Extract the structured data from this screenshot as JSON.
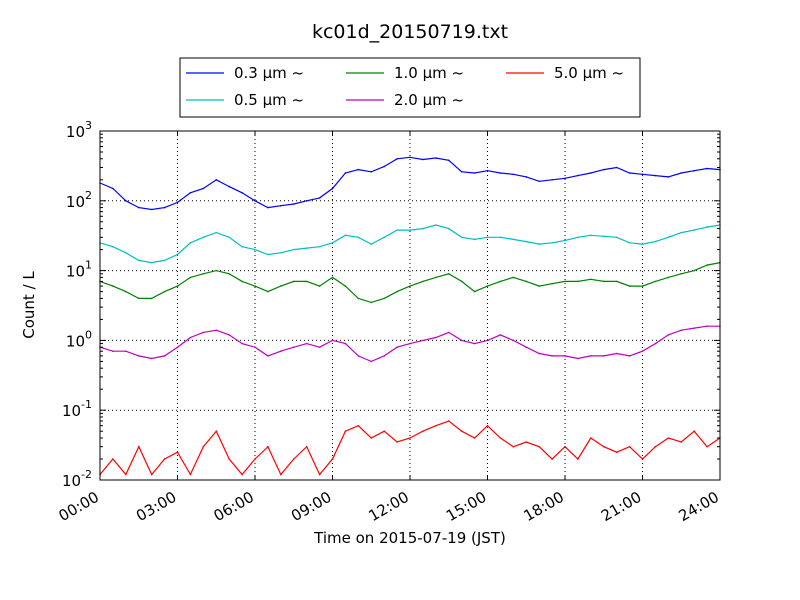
{
  "chart_data": {
    "type": "line",
    "title": "kc01d_20150719.txt",
    "xlabel": "Time on 2015-07-19 (JST)",
    "ylabel": "Count / L",
    "xlim": [
      "00:00",
      "24:00"
    ],
    "ylim": [
      0.01,
      1000
    ],
    "yscale": "log",
    "grid": true,
    "legend_position": "top-center",
    "x_ticks": [
      "00:00",
      "03:00",
      "06:00",
      "09:00",
      "12:00",
      "15:00",
      "18:00",
      "21:00",
      "24:00"
    ],
    "y_ticks": [
      {
        "base": "10",
        "exp": "-2"
      },
      {
        "base": "10",
        "exp": "-1"
      },
      {
        "base": "10",
        "exp": "0"
      },
      {
        "base": "10",
        "exp": "1"
      },
      {
        "base": "10",
        "exp": "2"
      },
      {
        "base": "10",
        "exp": "3"
      }
    ],
    "x_hours": [
      0,
      0.5,
      1,
      1.5,
      2,
      2.5,
      3,
      3.5,
      4,
      4.5,
      5,
      5.5,
      6,
      6.5,
      7,
      7.5,
      8,
      8.5,
      9,
      9.5,
      10,
      10.5,
      11,
      11.5,
      12,
      12.5,
      13,
      13.5,
      14,
      14.5,
      15,
      15.5,
      16,
      16.5,
      17,
      17.5,
      18,
      18.5,
      19,
      19.5,
      20,
      20.5,
      21,
      21.5,
      22,
      22.5,
      23,
      23.5,
      24
    ],
    "series": [
      {
        "name": "0.3 µm ~",
        "color": "#0000ff",
        "values": [
          180,
          150,
          100,
          80,
          75,
          80,
          95,
          130,
          150,
          200,
          160,
          130,
          100,
          80,
          85,
          90,
          100,
          110,
          150,
          250,
          280,
          260,
          310,
          400,
          420,
          390,
          410,
          380,
          260,
          250,
          270,
          250,
          240,
          220,
          190,
          200,
          210,
          230,
          250,
          280,
          300,
          250,
          240,
          230,
          220,
          250,
          270,
          290,
          280
        ]
      },
      {
        "name": "0.5 µm ~",
        "color": "#00bfbf",
        "values": [
          25,
          22,
          18,
          14,
          13,
          14,
          17,
          25,
          30,
          35,
          30,
          22,
          20,
          17,
          18,
          20,
          21,
          22,
          25,
          32,
          30,
          24,
          30,
          38,
          38,
          40,
          45,
          40,
          30,
          28,
          30,
          30,
          28,
          26,
          24,
          25,
          27,
          30,
          32,
          31,
          30,
          25,
          24,
          26,
          30,
          35,
          38,
          42,
          45
        ]
      },
      {
        "name": "1.0 µm ~",
        "color": "#008000",
        "values": [
          7,
          6,
          5,
          4,
          4,
          5,
          6,
          8,
          9,
          10,
          9,
          7,
          6,
          5,
          6,
          7,
          7,
          6,
          8,
          6,
          4,
          3.5,
          4,
          5,
          6,
          7,
          8,
          9,
          7,
          5,
          6,
          7,
          8,
          7,
          6,
          6.5,
          7,
          7,
          7.5,
          7,
          7,
          6,
          6,
          7,
          8,
          9,
          10,
          12,
          13
        ]
      },
      {
        "name": "2.0 µm ~",
        "color": "#bf00bf",
        "values": [
          0.8,
          0.7,
          0.7,
          0.6,
          0.55,
          0.6,
          0.8,
          1.1,
          1.3,
          1.4,
          1.2,
          0.9,
          0.8,
          0.6,
          0.7,
          0.8,
          0.9,
          0.8,
          1.0,
          0.9,
          0.6,
          0.5,
          0.6,
          0.8,
          0.9,
          1.0,
          1.1,
          1.3,
          1.0,
          0.9,
          1.0,
          1.2,
          1.0,
          0.8,
          0.65,
          0.6,
          0.6,
          0.55,
          0.6,
          0.6,
          0.65,
          0.6,
          0.7,
          0.9,
          1.2,
          1.4,
          1.5,
          1.6,
          1.6
        ]
      },
      {
        "name": "5.0 µm ~",
        "color": "#ff0000",
        "values": [
          0.012,
          0.02,
          0.012,
          0.03,
          0.012,
          0.02,
          0.025,
          0.012,
          0.03,
          0.05,
          0.02,
          0.012,
          0.02,
          0.03,
          0.012,
          0.02,
          0.03,
          0.012,
          0.02,
          0.05,
          0.06,
          0.04,
          0.05,
          0.035,
          0.04,
          0.05,
          0.06,
          0.07,
          0.05,
          0.04,
          0.06,
          0.04,
          0.03,
          0.035,
          0.03,
          0.02,
          0.03,
          0.02,
          0.04,
          0.03,
          0.025,
          0.03,
          0.02,
          0.03,
          0.04,
          0.035,
          0.05,
          0.03,
          0.04
        ]
      }
    ]
  }
}
